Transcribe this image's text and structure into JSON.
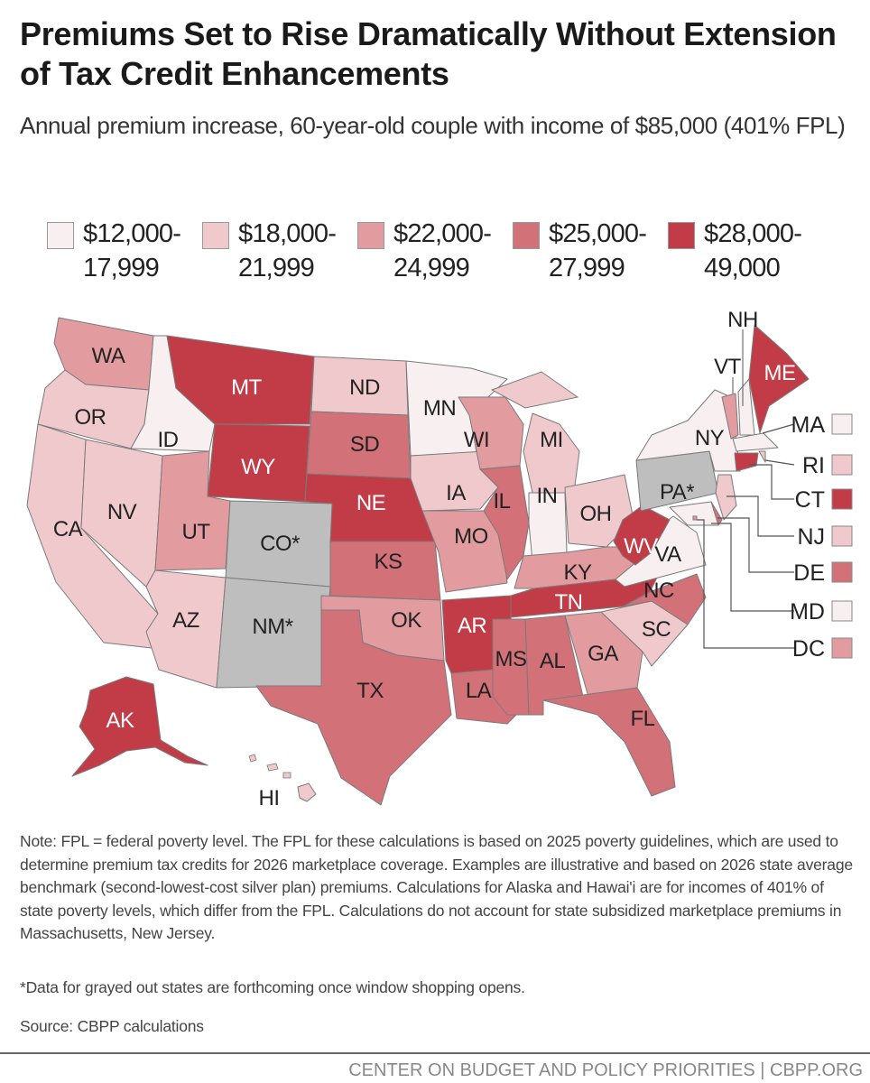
{
  "title": "Premiums Set to Rise Dramatically Without Extension of Tax Credit Enhancements",
  "subtitle": "Annual premium increase, 60-year-old couple with income of $85,000 (401% FPL)",
  "legend": [
    {
      "line1": "$12,000-",
      "line2": "17,999",
      "color": "#f8eff0"
    },
    {
      "line1": "$18,000-",
      "line2": "21,999",
      "color": "#f0c9cd"
    },
    {
      "line1": "$22,000-",
      "line2": "24,999",
      "color": "#e29ca0"
    },
    {
      "line1": "$25,000-",
      "line2": "27,999",
      "color": "#d27278"
    },
    {
      "line1": "$28,000-",
      "line2": "49,000",
      "color": "#c23c47"
    }
  ],
  "no_data_color": "#bebebe",
  "states": {
    "WA": "2",
    "OR": "1",
    "CA": "1",
    "NV": "1",
    "ID": "0",
    "MT": "4",
    "WY": "4",
    "UT": "2",
    "CO": "gray",
    "AZ": "1",
    "NM": "gray",
    "ND": "1",
    "SD": "3",
    "NE": "4",
    "KS": "3",
    "OK": "2",
    "TX": "3",
    "MN": "0",
    "IA": "1",
    "MO": "2",
    "AR": "4",
    "LA": "3",
    "WI": "2",
    "IL": "3",
    "MI": "1",
    "IN": "0",
    "OH": "1",
    "KY": "2",
    "TN": "4",
    "MS": "3",
    "AL": "3",
    "GA": "2",
    "FL": "3",
    "SC": "1",
    "NC": "3",
    "VA": "0",
    "WV": "4",
    "PA": "gray",
    "NY": "0",
    "VT": "2",
    "NH": "0",
    "ME": "4",
    "MA": "0",
    "CT": "4",
    "RI": "1",
    "NJ": "1",
    "DE": "3",
    "MD": "0",
    "DC": "2",
    "AK": "4",
    "HI": "1"
  },
  "labels": {
    "WA": "WA",
    "OR": "OR",
    "CA": "CA",
    "NV": "NV",
    "ID": "ID",
    "MT": "MT",
    "WY": "WY",
    "UT": "UT",
    "CO": "CO*",
    "AZ": "AZ",
    "NM": "NM*",
    "ND": "ND",
    "SD": "SD",
    "NE": "NE",
    "KS": "KS",
    "OK": "OK",
    "TX": "TX",
    "MN": "MN",
    "IA": "IA",
    "MO": "MO",
    "AR": "AR",
    "LA": "LA",
    "WI": "WI",
    "IL": "IL",
    "MI": "MI",
    "IN": "IN",
    "OH": "OH",
    "KY": "KY",
    "TN": "TN",
    "MS": "MS",
    "AL": "AL",
    "GA": "GA",
    "FL": "FL",
    "SC": "SC",
    "NC": "NC",
    "VA": "VA",
    "WV": "WV",
    "PA": "PA*",
    "NY": "NY",
    "VT": "VT",
    "NH": "NH",
    "ME": "ME",
    "MA": "MA",
    "CT": "CT",
    "RI": "RI",
    "NJ": "NJ",
    "DE": "DE",
    "MD": "MD",
    "DC": "DC",
    "AK": "AK",
    "HI": "HI"
  },
  "notes": "Note: FPL = federal poverty level. The FPL for these calculations is based on 2025 poverty guidelines, which are used to determine premium tax credits for 2026 marketplace coverage. Examples are illustrative and based on 2026 state average benchmark (second-lowest-cost silver plan) premiums. Calculations for Alaska and Hawai'i are for incomes of 401% of state poverty levels, which differ from the FPL. Calculations do not account for state subsidized marketplace premiums in Massachusetts, New Jersey.",
  "footnote": "*Data for grayed out states are forthcoming once window shopping opens.",
  "source": "Source: CBPP calculations",
  "footer": "CENTER ON BUDGET AND POLICY PRIORITIES | CBPP.ORG"
}
